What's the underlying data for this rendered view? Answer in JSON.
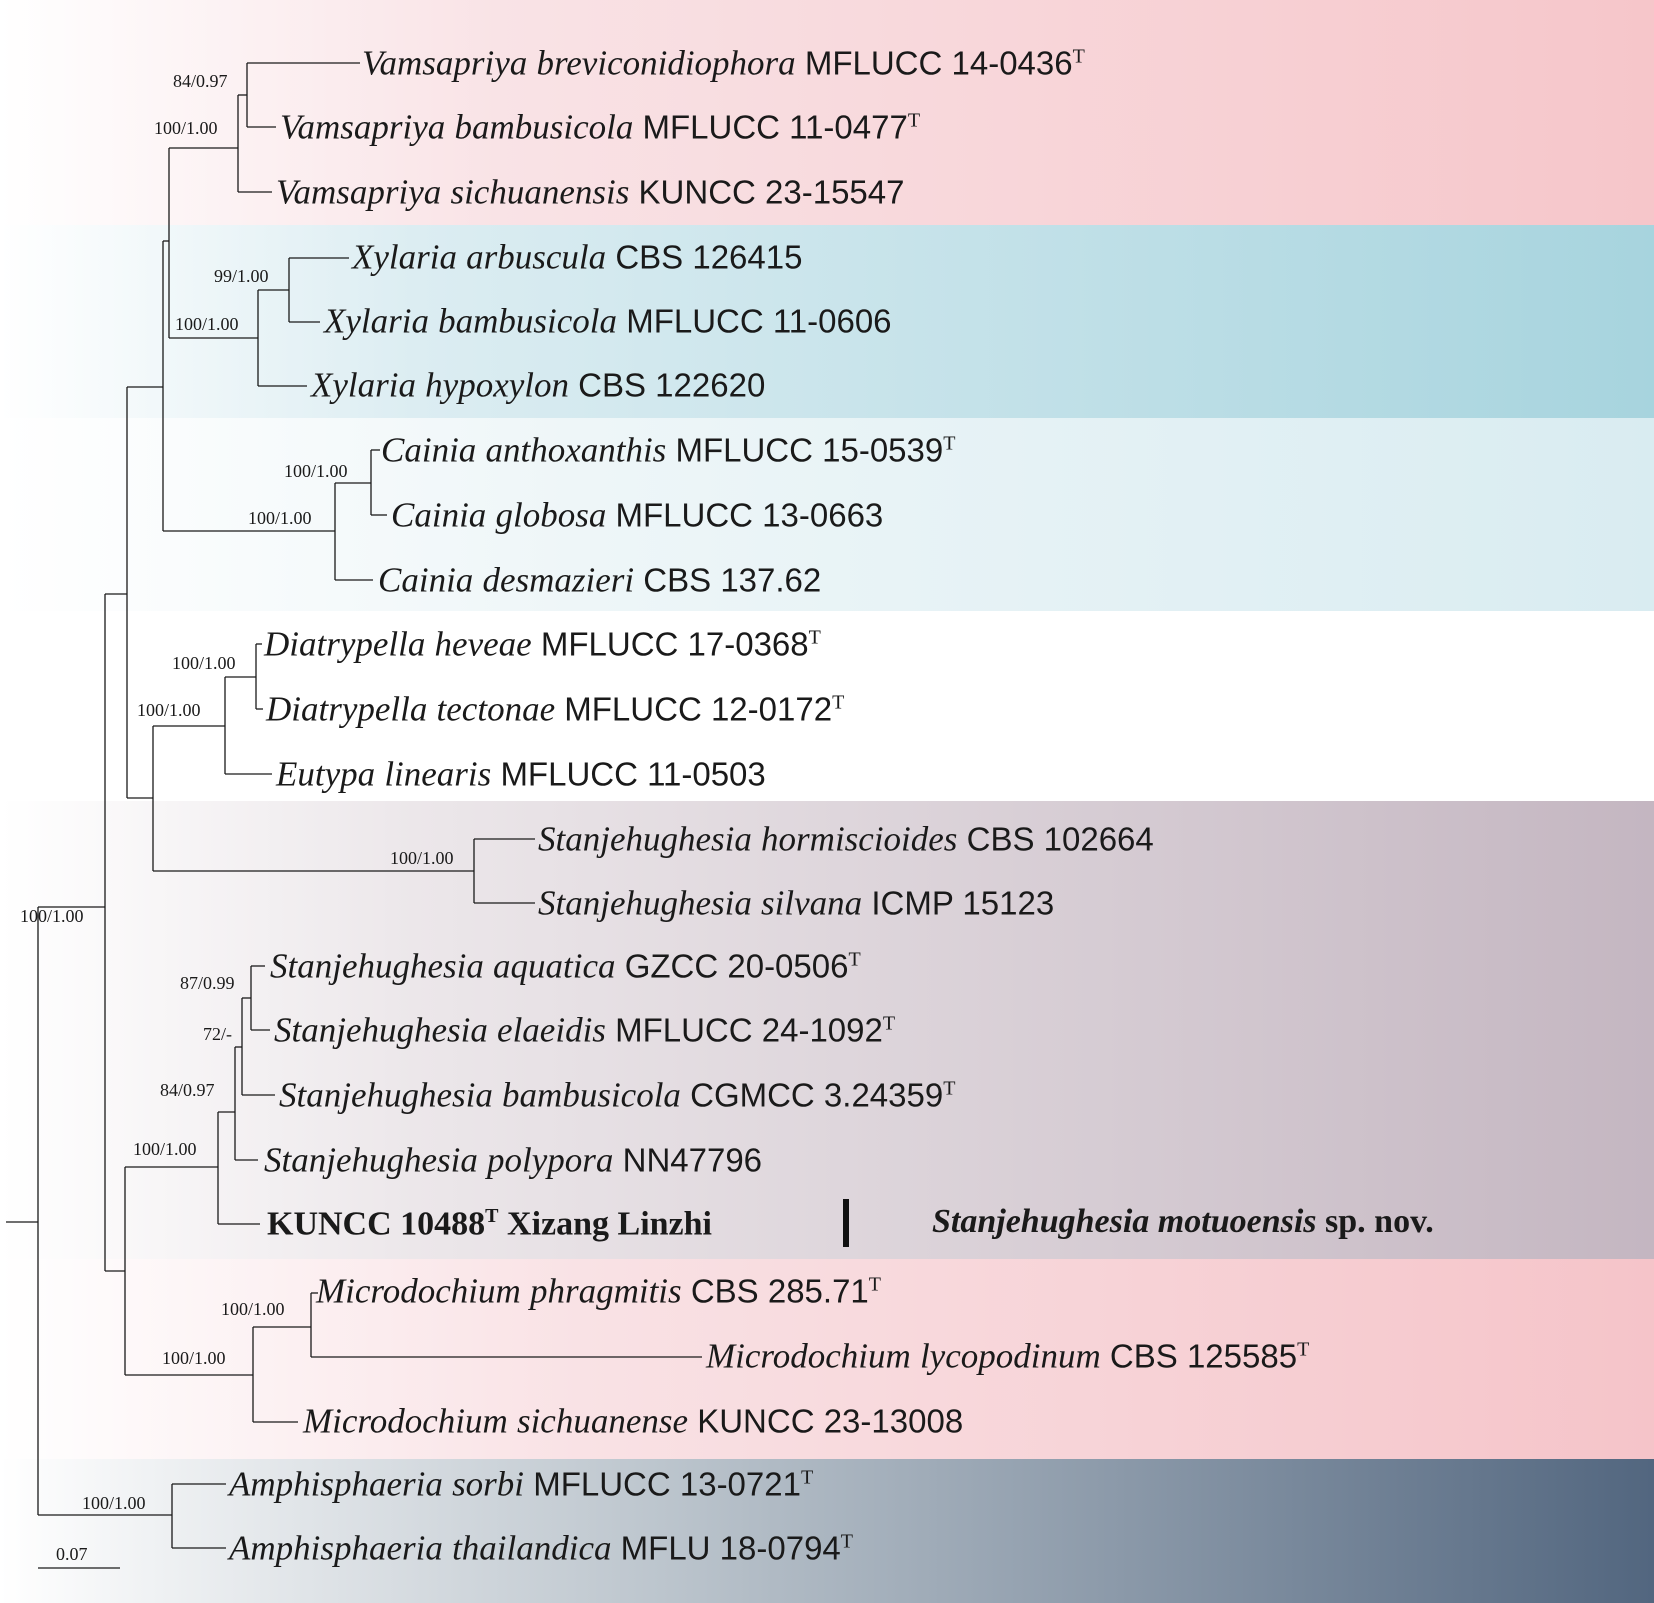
{
  "taxa": {
    "t1": {
      "genus": "Vamsapriya",
      "epithet": "breviconidiophora",
      "strain": "MFLUCC 14-0436",
      "type_mark": "T"
    },
    "t2": {
      "genus": "Vamsapriya",
      "epithet": "bambusicola",
      "strain": "MFLUCC 11-0477",
      "type_mark": "T"
    },
    "t3": {
      "genus": "Vamsapriya",
      "epithet": "sichuanensis",
      "strain": "KUNCC 23-15547",
      "type_mark": ""
    },
    "t4": {
      "genus": "Xylaria",
      "epithet": "arbuscula",
      "strain": "CBS 126415",
      "type_mark": ""
    },
    "t5": {
      "genus": "Xylaria",
      "epithet": "bambusicola",
      "strain": "MFLUCC 11-0606",
      "type_mark": ""
    },
    "t6": {
      "genus": "Xylaria",
      "epithet": "hypoxylon",
      "strain": "CBS 122620",
      "type_mark": ""
    },
    "t7": {
      "genus": "Cainia",
      "epithet": "anthoxanthis",
      "strain": "MFLUCC 15-0539",
      "type_mark": "T"
    },
    "t8": {
      "genus": "Cainia",
      "epithet": "globosa",
      "strain": "MFLUCC 13-0663",
      "type_mark": ""
    },
    "t9": {
      "genus": "Cainia",
      "epithet": "desmazieri",
      "strain": "CBS 137.62",
      "type_mark": ""
    },
    "t10": {
      "genus": "Diatrypella",
      "epithet": "heveae",
      "strain": "MFLUCC 17-0368",
      "type_mark": "T"
    },
    "t11": {
      "genus": "Diatrypella",
      "epithet": "tectonae",
      "strain": "MFLUCC 12-0172",
      "type_mark": "T"
    },
    "t12": {
      "genus": "Eutypa",
      "epithet": "linearis",
      "strain": "MFLUCC 11-0503",
      "type_mark": ""
    },
    "t13": {
      "genus": "Stanjehughesia",
      "epithet": "hormiscioides",
      "strain": "CBS 102664",
      "type_mark": ""
    },
    "t14": {
      "genus": "Stanjehughesia",
      "epithet": "silvana",
      "strain": "ICMP 15123",
      "type_mark": ""
    },
    "t15": {
      "genus": "Stanjehughesia",
      "epithet": "aquatica",
      "strain": "GZCC 20-0506",
      "type_mark": "T"
    },
    "t16": {
      "genus": "Stanjehughesia",
      "epithet": "elaeidis",
      "strain": "MFLUCC 24-1092",
      "type_mark": "T"
    },
    "t17": {
      "genus": "Stanjehughesia",
      "epithet": "bambusicola",
      "strain": "CGMCC 3.24359",
      "type_mark": "T"
    },
    "t18": {
      "genus": "Stanjehughesia",
      "epithet": "polypora",
      "strain": "NN47796",
      "type_mark": ""
    },
    "t19": {
      "strain": "KUNCC 10488",
      "type_mark": "T",
      "locality": "Xizang Linzhi"
    },
    "t20": {
      "genus": "Microdochium",
      "epithet": "phragmitis",
      "strain": "CBS 285.71",
      "type_mark": "T"
    },
    "t21": {
      "genus": "Microdochium",
      "epithet": "lycopodinum",
      "strain": "CBS 125585",
      "type_mark": "T"
    },
    "t22": {
      "genus": "Microdochium",
      "epithet": "sichuanense",
      "strain": "KUNCC 23-13008",
      "type_mark": ""
    },
    "t23": {
      "genus": "Amphisphaeria",
      "epithet": "sorbi",
      "strain": "MFLUCC 13-0721",
      "type_mark": "T"
    },
    "t24": {
      "genus": "Amphisphaeria",
      "epithet": "thailandica",
      "strain": "MFLU 18-0794",
      "type_mark": "T"
    }
  },
  "new_species": {
    "name": "Stanjehughesia motuoensis",
    "suffix": "sp. nov."
  },
  "support": {
    "s_vam_inner": "84/0.97",
    "s_vam": "100/1.00",
    "s_xyl_inner": "99/1.00",
    "s_xyl": "100/1.00",
    "s_cai_inner": "100/1.00",
    "s_cai": "100/1.00",
    "s_dia_inner": "100/1.00",
    "s_dia": "100/1.00",
    "s_sta2": "100/1.00",
    "s_root": "100/1.00",
    "s_sta_aq": "87/0.99",
    "s_sta_72": "72/-",
    "s_sta_84": "84/0.97",
    "s_sta_new": "100/1.00",
    "s_mic_inner": "100/1.00",
    "s_mic": "100/1.00",
    "s_amp": "100/1.00"
  },
  "scale_bar": {
    "label": "0.07"
  },
  "clade_colors": {
    "Vamsapriya": "#f6c6ca",
    "Xylaria": "#a7d4de",
    "Cainia": "#d9ecf1",
    "Diatrypella_Eutypa": "#ffffff",
    "Stanjehughesia": "#c4b6c1",
    "Microdochium": "#f5c4c9",
    "Amphisphaeria": "#52667f"
  }
}
